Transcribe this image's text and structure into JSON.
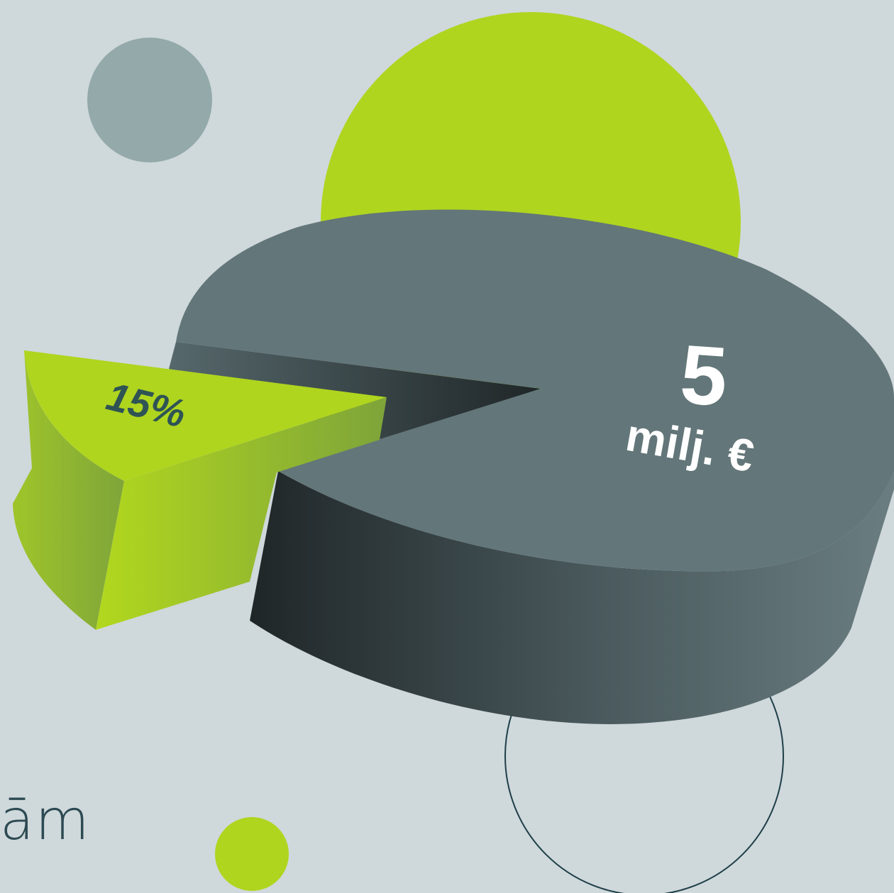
{
  "colors": {
    "background": "#cfd8db",
    "accent_green": "#afd51f",
    "dot_gray": "#93a9aa",
    "pie_top": "#637679",
    "pie_side_dark": "#1f2628",
    "outline_circle": "#1e3f48",
    "value_label": "#ffffff",
    "percent_label": "#2f5454"
  },
  "decorations": {
    "gray_dot": "circle",
    "green_large_circle": "circle",
    "green_small_dot": "circle",
    "outline_circle": "circle"
  },
  "cropped_text": "ām",
  "chart_data": {
    "type": "pie",
    "style": "3d-exploded",
    "title": "",
    "slices": [
      {
        "label": "15%",
        "value": 15,
        "color": "#afd51f",
        "exploded": true
      },
      {
        "label": "5 milj. €",
        "value": 85,
        "color": "#637679",
        "exploded": false
      }
    ],
    "value_label": {
      "number": "5",
      "unit": "milj. €"
    },
    "percent_label": "15%"
  }
}
